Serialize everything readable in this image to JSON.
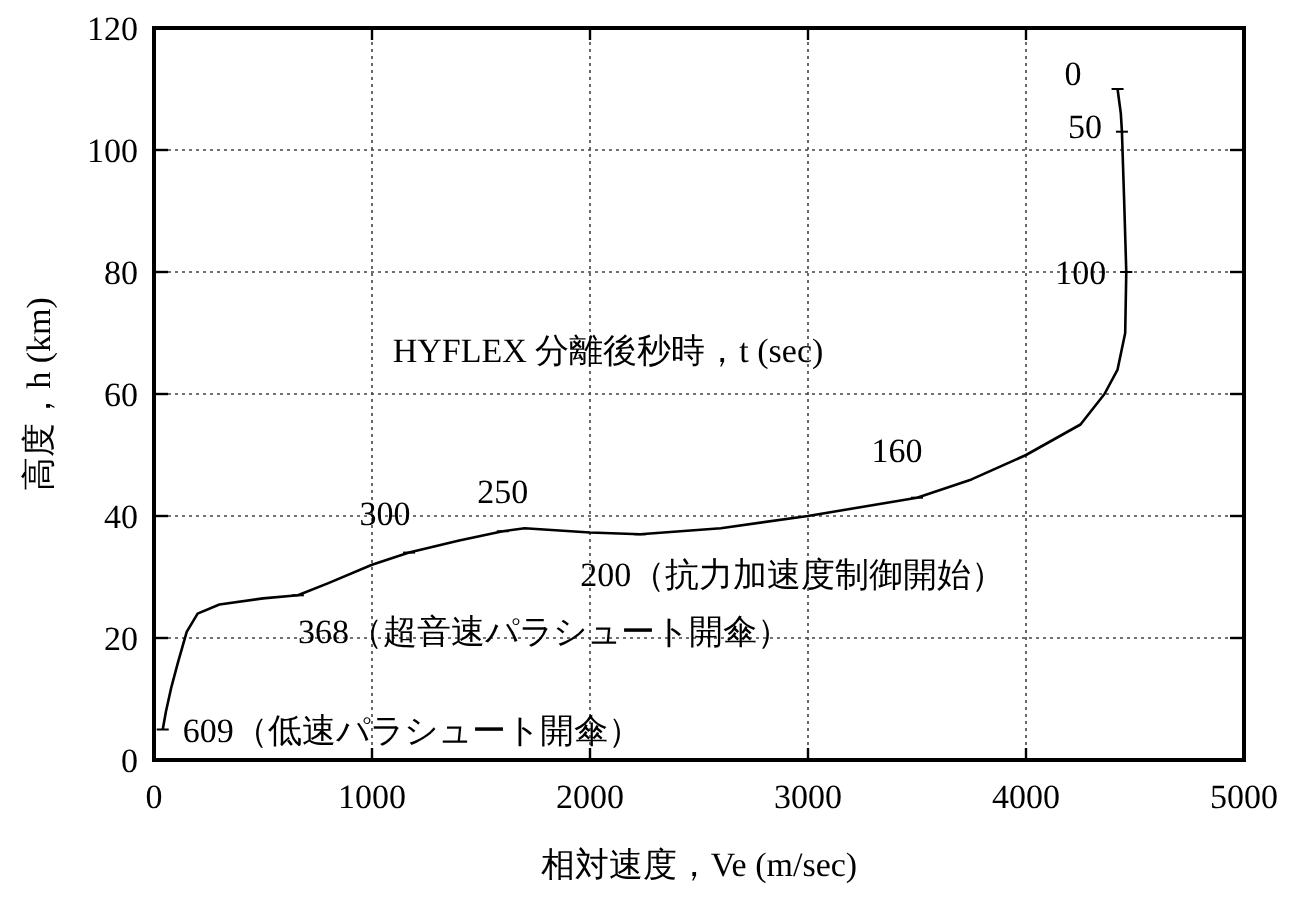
{
  "chart_data": {
    "type": "line",
    "xlabel": "相対速度，Ve (m/sec)",
    "ylabel": "高度，h (km)",
    "x": [
      4420,
      4435,
      4440,
      4450,
      4460,
      4455,
      4420,
      4360,
      4250,
      4000,
      3750,
      3500,
      3000,
      2600,
      2230,
      2000,
      1700,
      1600,
      1400,
      1170,
      1000,
      800,
      660,
      500,
      300,
      200,
      150,
      110,
      80,
      55,
      40
    ],
    "series": [
      {
        "color": "#000000",
        "values": [
          110,
          106,
          103,
          92,
          80,
          70,
          64,
          60,
          55,
          50,
          46,
          43,
          40,
          38,
          37,
          37.3,
          38,
          37.5,
          36,
          34,
          32,
          29,
          27,
          26.5,
          25.5,
          24,
          21,
          16,
          12,
          8,
          5
        ]
      }
    ],
    "xlim": [
      0,
      5000
    ],
    "ylim": [
      0,
      120
    ],
    "xticks": [
      0,
      1000,
      2000,
      3000,
      4000,
      5000
    ],
    "yticks": [
      0,
      20,
      40,
      60,
      80,
      100,
      120
    ],
    "grid": true,
    "marker": "none",
    "line_style": "solid",
    "annotations": [
      "HYFLEX 分離後秒時，t (sec)",
      {
        "text": "0",
        "x": 4420,
        "y": 110
      },
      {
        "text": "50",
        "x": 4440,
        "y": 103
      },
      {
        "text": "100",
        "x": 4460,
        "y": 80
      },
      {
        "text": "160",
        "x": 3500,
        "y": 43
      },
      {
        "text": "200（抗力加速度制御開始）",
        "x": 2230,
        "y": 37
      },
      {
        "text": "250",
        "x": 1600,
        "y": 37.5
      },
      {
        "text": "300",
        "x": 1170,
        "y": 34
      },
      {
        "text": "368（超音速パラシュート開傘）",
        "x": 660,
        "y": 27
      },
      {
        "text": "609（低速パラシュート開傘）",
        "x": 40,
        "y": 5
      }
    ]
  }
}
